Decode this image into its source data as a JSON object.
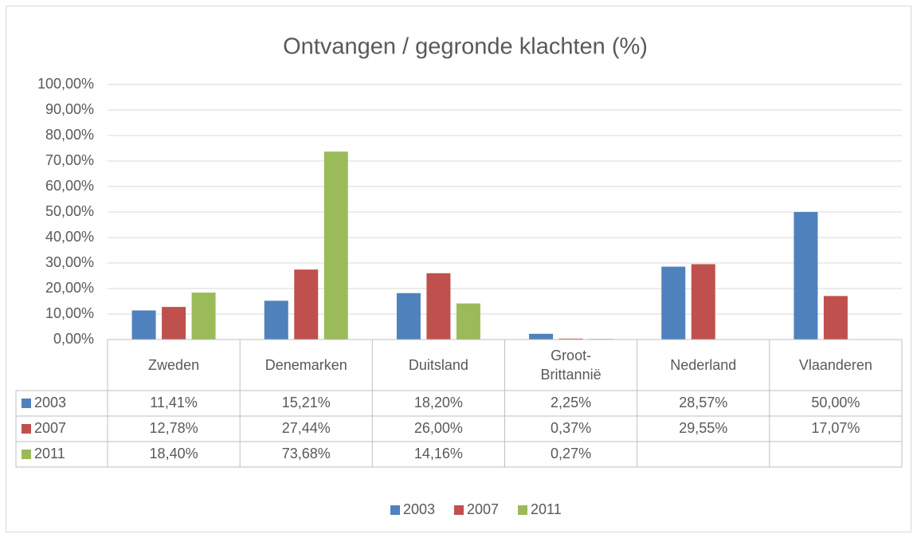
{
  "chart_data": {
    "type": "bar",
    "title": "Ontvangen / gegronde klachten (%)",
    "categories": [
      "Zweden",
      "Denemarken",
      "Duitsland",
      "Groot-Brittannië",
      "Nederland",
      "Vlaanderen"
    ],
    "series": [
      {
        "name": "2003",
        "color": "#4f81bd",
        "values": [
          11.41,
          15.21,
          18.2,
          2.25,
          28.57,
          50.0
        ],
        "value_labels": [
          "11,41%",
          "15,21%",
          "18,20%",
          "2,25%",
          "28,57%",
          "50,00%"
        ]
      },
      {
        "name": "2007",
        "color": "#c0504d",
        "values": [
          12.78,
          27.44,
          26.0,
          0.37,
          29.55,
          17.07
        ],
        "value_labels": [
          "12,78%",
          "27,44%",
          "26,00%",
          "0,37%",
          "29,55%",
          "17,07%"
        ]
      },
      {
        "name": "2011",
        "color": "#9bbb59",
        "values": [
          18.4,
          73.68,
          14.16,
          0.27,
          null,
          null
        ],
        "value_labels": [
          "18,40%",
          "73,68%",
          "14,16%",
          "0,27%",
          null,
          null
        ]
      }
    ],
    "ylim": [
      0,
      100
    ],
    "yticks": [
      {
        "value": 0,
        "label": "0,00%"
      },
      {
        "value": 10,
        "label": "10,00%"
      },
      {
        "value": 20,
        "label": "20,00%"
      },
      {
        "value": 30,
        "label": "30,00%"
      },
      {
        "value": 40,
        "label": "40,00%"
      },
      {
        "value": 50,
        "label": "50,00%"
      },
      {
        "value": 60,
        "label": "60,00%"
      },
      {
        "value": 70,
        "label": "70,00%"
      },
      {
        "value": 80,
        "label": "80,00%"
      },
      {
        "value": 90,
        "label": "90,00%"
      },
      {
        "value": 100,
        "label": "100,00%"
      }
    ],
    "grid": true,
    "legend": "bottom"
  }
}
